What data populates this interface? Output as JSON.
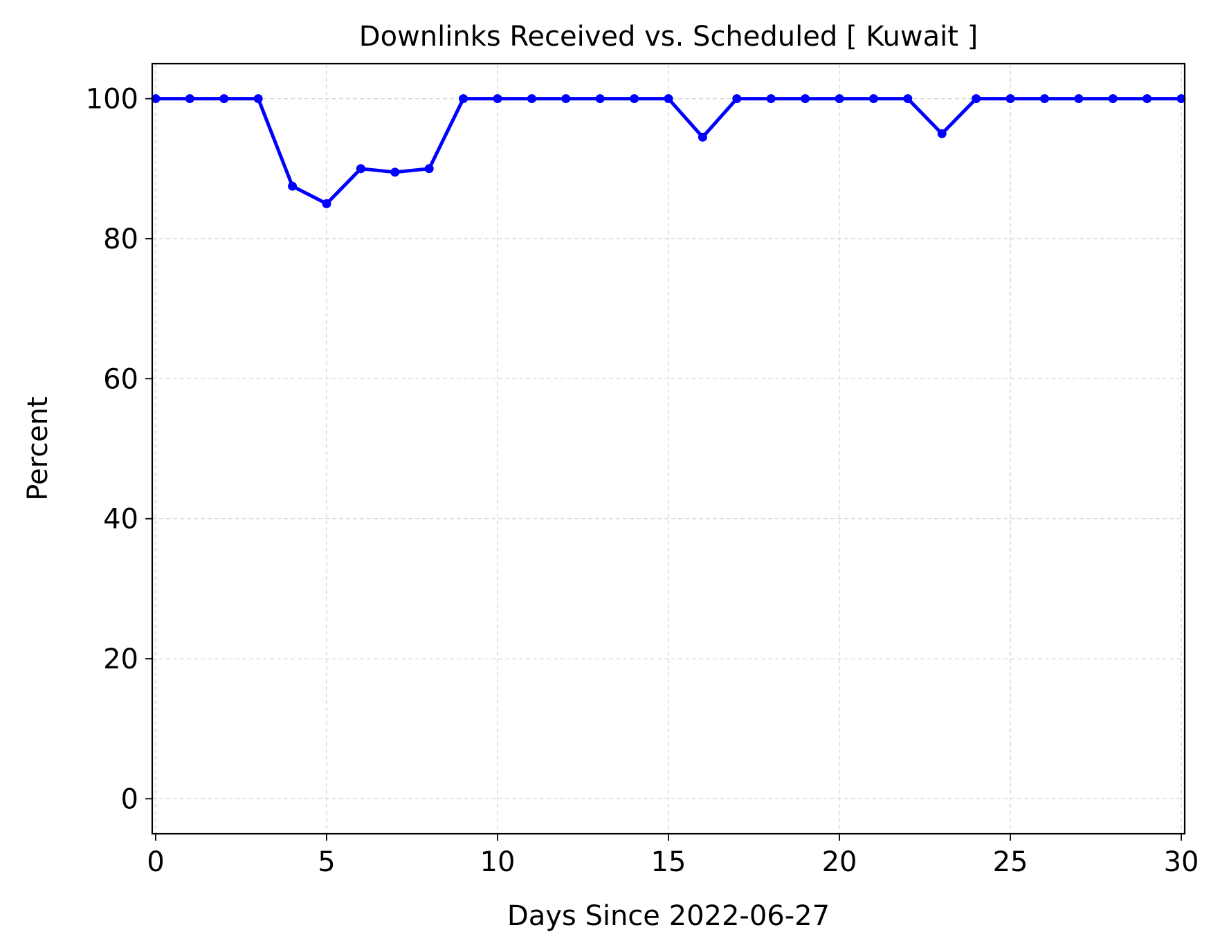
{
  "chart_data": {
    "type": "line",
    "title": "Downlinks Received vs. Scheduled [ Kuwait ]",
    "xlabel": "Days Since 2022-06-27",
    "ylabel": "Percent",
    "xlim": [
      -0.1,
      30.1
    ],
    "ylim": [
      -5,
      105
    ],
    "xticks": [
      0,
      5,
      10,
      15,
      20,
      25,
      30
    ],
    "yticks": [
      0,
      20,
      40,
      60,
      80,
      100
    ],
    "grid": true,
    "series": [
      {
        "color": "#0000ff",
        "marker": "circle",
        "x": [
          0,
          1,
          2,
          3,
          4,
          5,
          6,
          7,
          8,
          9,
          10,
          11,
          12,
          13,
          14,
          15,
          16,
          17,
          18,
          19,
          20,
          21,
          22,
          23,
          24,
          25,
          26,
          27,
          28,
          29,
          30
        ],
        "y": [
          100,
          100,
          100,
          100,
          87.5,
          85,
          90,
          89.5,
          90,
          100,
          100,
          100,
          100,
          100,
          100,
          100,
          94.5,
          100,
          100,
          100,
          100,
          100,
          100,
          95,
          100,
          100,
          100,
          100,
          100,
          100,
          100
        ]
      }
    ]
  }
}
